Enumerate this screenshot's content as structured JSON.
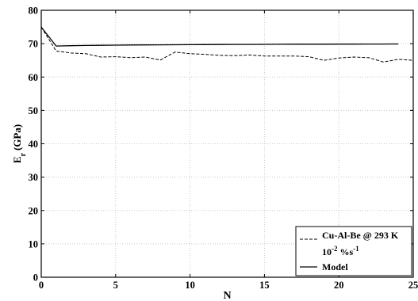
{
  "chart_data": {
    "type": "line",
    "title": "",
    "xlabel": "N",
    "ylabel_main": "E",
    "ylabel_sub": "r",
    "ylabel_unit": "(GPa)",
    "xlim": [
      0,
      25
    ],
    "ylim": [
      0,
      80
    ],
    "xticks": [
      0,
      5,
      10,
      15,
      20,
      25
    ],
    "yticks": [
      0,
      10,
      20,
      30,
      40,
      50,
      60,
      70,
      80
    ],
    "grid": true,
    "legend_position": "bottom-right",
    "series": [
      {
        "legend_line1": "Cu-Al-Be @ 293 K",
        "legend_line2_base": "10",
        "legend_line2_exp1": "-2",
        "legend_line2_mid": " %s",
        "legend_line2_exp2": "-1",
        "style": "dashed",
        "x": [
          0,
          1,
          2,
          3,
          4,
          5,
          6,
          7,
          8,
          9,
          10,
          11,
          12,
          13,
          14,
          15,
          16,
          17,
          18,
          19,
          20,
          21,
          22,
          23,
          24,
          25
        ],
        "y": [
          75,
          67.8,
          67.2,
          67,
          66,
          66.1,
          65.8,
          66,
          65.1,
          67.5,
          67,
          66.8,
          66.5,
          66.4,
          66.6,
          66.3,
          66.3,
          66.3,
          66.1,
          65,
          65.7,
          66,
          65.8,
          64.5,
          65.3,
          65
        ]
      },
      {
        "name": "Model",
        "style": "solid",
        "x": [
          0,
          1,
          2,
          3,
          4,
          5,
          6,
          7,
          8,
          9,
          10,
          11,
          12,
          13,
          14,
          15,
          16,
          17,
          18,
          19,
          20,
          21,
          22,
          23,
          24
        ],
        "y": [
          75,
          69.3,
          69.4,
          69.45,
          69.5,
          69.55,
          69.6,
          69.62,
          69.65,
          69.68,
          69.7,
          69.72,
          69.74,
          69.76,
          69.78,
          69.8,
          69.82,
          69.83,
          69.84,
          69.85,
          69.86,
          69.87,
          69.88,
          69.89,
          69.9
        ]
      }
    ]
  }
}
